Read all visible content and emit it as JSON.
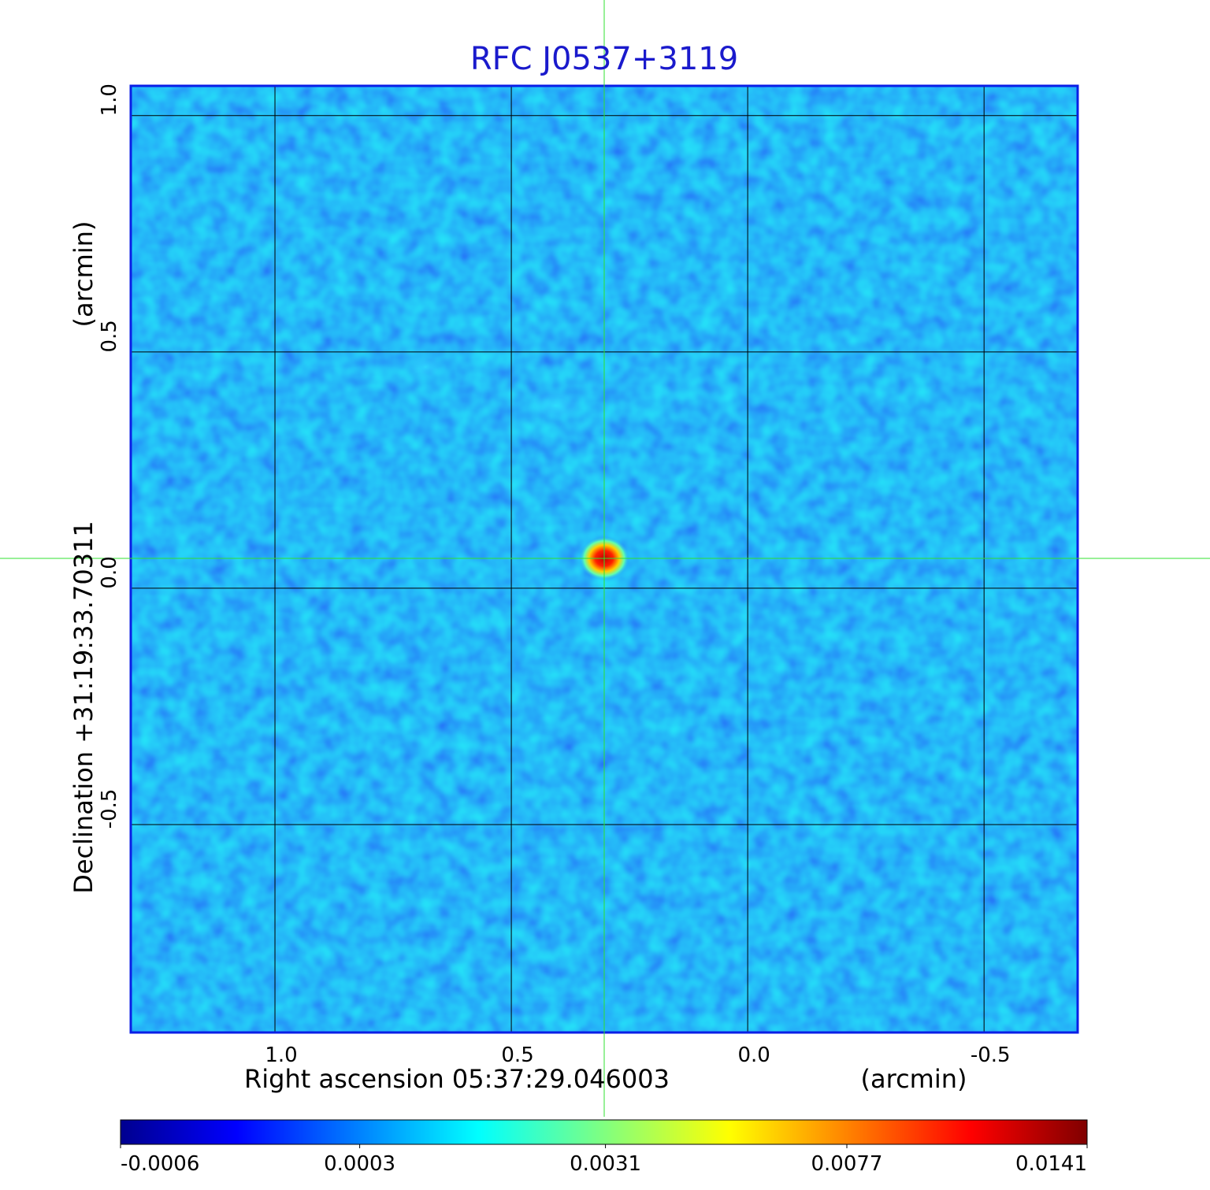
{
  "chart_data": {
    "type": "image",
    "title": "RFC J0537+3119",
    "x_label": "Right ascension  05:37:29.046003",
    "x_unit": "(arcmin)",
    "y_label": "Declination  +31:19:33.70311",
    "y_unit": "(arcmin)",
    "xlim": [
      1.305,
      -0.698
    ],
    "ylim": [
      -0.94,
      1.063
    ],
    "xticks": [
      {
        "value": 1.0,
        "label": "1.0"
      },
      {
        "value": 0.5,
        "label": "0.5"
      },
      {
        "value": 0.0,
        "label": "0.0"
      },
      -0.5
    ],
    "yticks": [
      {
        "value": 1.0,
        "label": "1.0"
      },
      {
        "value": 0.5,
        "label": "0.5"
      },
      {
        "value": 0.0,
        "label": "0.0"
      },
      -0.5
    ],
    "grid": true,
    "colorbar": {
      "scale": "sqrt",
      "lim": [
        -0.0006,
        0.0141
      ],
      "ticks": [
        -0.0006,
        0.0003,
        0.0031,
        0.0077,
        0.0141
      ]
    }
  }
}
